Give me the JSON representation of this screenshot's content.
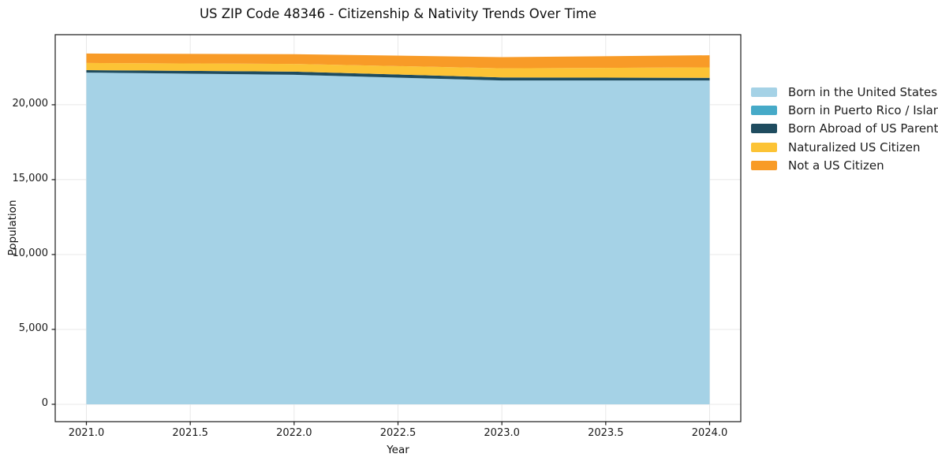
{
  "figure": {
    "background": "#ffffff"
  },
  "chart_data": {
    "type": "area",
    "stacked": true,
    "title": "US ZIP Code 48346 - Citizenship & Nativity Trends Over Time",
    "xlabel": "Year",
    "ylabel": "Population",
    "x": [
      2021,
      2022,
      2023,
      2024
    ],
    "series": [
      {
        "name": "Born in the United States",
        "color": "#a5d2e6",
        "values": [
          22150,
          22000,
          21620,
          21620
        ]
      },
      {
        "name": "Born in Puerto Rico / Islands",
        "color": "#46aac8",
        "values": [
          0,
          0,
          0,
          0
        ]
      },
      {
        "name": "Born Abroad of US Parent(s)",
        "color": "#1f4c5f",
        "values": [
          160,
          210,
          210,
          175
        ]
      },
      {
        "name": "Naturalized US Citizen",
        "color": "#fcc335",
        "values": [
          480,
          520,
          610,
          700
        ]
      },
      {
        "name": "Not a US Citizen",
        "color": "#f89b27",
        "values": [
          630,
          650,
          740,
          810
        ]
      }
    ],
    "totals": [
      23420,
      23380,
      23180,
      23305
    ],
    "xticks": [
      2021.0,
      2021.5,
      2022.0,
      2022.5,
      2023.0,
      2023.5,
      2024.0
    ],
    "xtick_labels": [
      "2021.0",
      "2021.5",
      "2022.0",
      "2022.5",
      "2023.0",
      "2023.5",
      "2024.0"
    ],
    "yticks": [
      0,
      5000,
      10000,
      15000,
      20000
    ],
    "ytick_labels": [
      "0",
      "5,000",
      "10,000",
      "15,000",
      "20,000"
    ],
    "xlim": [
      2020.85,
      2024.15
    ],
    "ylim": [
      -1160,
      24680
    ],
    "grid": true,
    "grid_color": "#e8e8e8",
    "spine_color": "#1a1a1a",
    "legend_position": "right"
  }
}
